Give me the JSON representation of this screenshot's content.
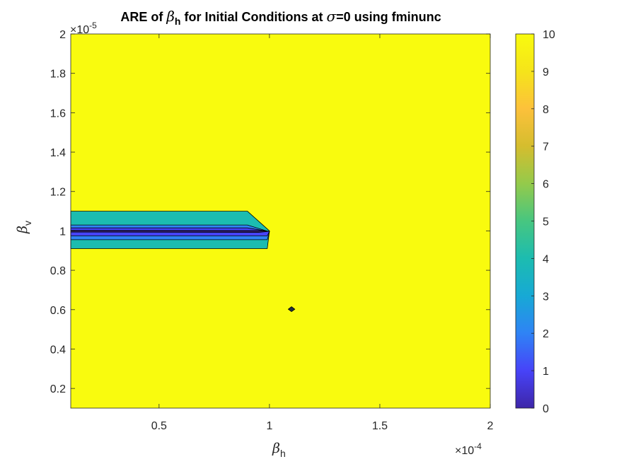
{
  "chart_data": {
    "type": "contour",
    "title": {
      "prefix": "ARE of ",
      "symbol": "β",
      "subscript": "h",
      "suffix": " for Initial Conditions at ",
      "sigma_symbol": "σ",
      "sigma_value": "=0 using fminunc"
    },
    "xlabel": {
      "symbol": "β",
      "subscript": "h"
    },
    "ylabel": {
      "symbol": "β",
      "subscript": "v"
    },
    "x_exponent_label": "×10",
    "x_exponent": "-4",
    "y_exponent_label": "×10",
    "y_exponent": "-5",
    "xlim": [
      0.1,
      2.0
    ],
    "ylim": [
      0.1,
      2.0
    ],
    "xticks": [
      0.5,
      1,
      1.5,
      2
    ],
    "xtick_labels": [
      "0.5",
      "1",
      "1.5",
      "2"
    ],
    "yticks": [
      0.2,
      0.4,
      0.6,
      0.8,
      1,
      1.2,
      1.4,
      1.6,
      1.8,
      2
    ],
    "ytick_labels": [
      "0.2",
      "0.4",
      "0.6",
      "0.8",
      "1",
      "1.2",
      "1.4",
      "1.6",
      "1.8",
      "2"
    ],
    "colorbar": {
      "range": [
        0,
        10
      ],
      "ticks": [
        0,
        1,
        2,
        3,
        4,
        5,
        6,
        7,
        8,
        9,
        10
      ],
      "tick_labels": [
        "0",
        "1",
        "2",
        "3",
        "4",
        "5",
        "6",
        "7",
        "8",
        "9",
        "10"
      ],
      "colormap": "parula",
      "colormap_stops": [
        "#3e26a8",
        "#4743f8",
        "#2f83f5",
        "#17a9d5",
        "#1cbcb0",
        "#47c680",
        "#94ca4b",
        "#d5bd2e",
        "#fcc13b",
        "#f5e41a",
        "#f9fb0e"
      ]
    },
    "background_level": 10,
    "regions": [
      {
        "name": "band-level-5",
        "level": 5,
        "color": "#1cbcb0",
        "points": [
          [
            0.1,
            1.1
          ],
          [
            0.9,
            1.1
          ],
          [
            1.0,
            1.0
          ],
          [
            0.99,
            0.91
          ],
          [
            0.1,
            0.91
          ]
        ]
      },
      {
        "name": "band-level-3",
        "level": 3,
        "color": "#2f83f5",
        "points": [
          [
            0.1,
            1.03
          ],
          [
            0.9,
            1.03
          ],
          [
            1.0,
            0.995
          ],
          [
            0.99,
            0.955
          ],
          [
            0.1,
            0.955
          ]
        ]
      },
      {
        "name": "band-level-1",
        "level": 1,
        "color": "#4743f8",
        "points": [
          [
            0.1,
            1.015
          ],
          [
            0.9,
            1.015
          ],
          [
            1.0,
            0.997
          ],
          [
            0.99,
            0.975
          ],
          [
            0.1,
            0.975
          ]
        ]
      },
      {
        "name": "band-level-0",
        "level": 0,
        "color": "#2b1a60",
        "points": [
          [
            0.1,
            1.003
          ],
          [
            0.95,
            1.002
          ],
          [
            1.0,
            0.998
          ],
          [
            0.95,
            0.992
          ],
          [
            0.1,
            0.994
          ]
        ]
      },
      {
        "name": "spot-near-1.1-0.6",
        "level": 0,
        "color": "#203040",
        "points": [
          [
            1.1,
            0.615
          ],
          [
            1.115,
            0.602
          ],
          [
            1.1,
            0.59
          ],
          [
            1.085,
            0.602
          ]
        ]
      }
    ]
  }
}
